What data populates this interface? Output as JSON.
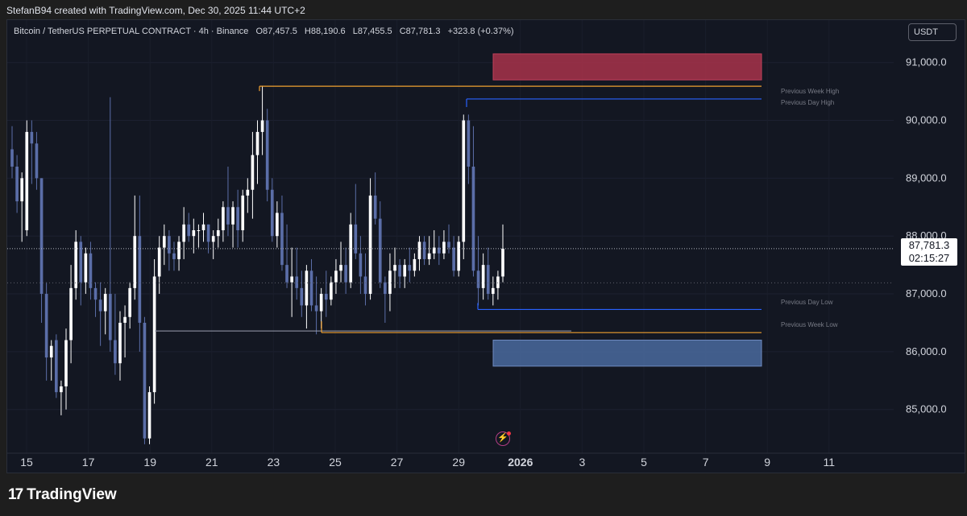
{
  "header": {
    "attribution": "StefanB94 created with TradingView.com, Dec 30, 2025 11:44 UTC+2"
  },
  "legend": {
    "symbol": "Bitcoin / TetherUS PERPETUAL CONTRACT · 4h · Binance",
    "open": "O87,457.5",
    "high": "H88,190.6",
    "low": "L87,455.5",
    "close": "C87,781.3",
    "change": "+323.8 (+0.37%)"
  },
  "currency": "USDT",
  "price_axis": {
    "labels": [
      "91,000.0",
      "90,000.0",
      "89,000.0",
      "88,000.0",
      "87,000.0",
      "86,000.0",
      "85,000.0"
    ],
    "current_price": "87,781.3",
    "countdown": "02:15:27"
  },
  "time_axis": {
    "labels": [
      "15",
      "17",
      "19",
      "21",
      "23",
      "25",
      "27",
      "29",
      "2026",
      "3",
      "5",
      "7",
      "9",
      "11"
    ]
  },
  "levels": {
    "prev_week_high": "Previous Week High",
    "prev_day_high": "Previous Day High",
    "prev_day_low": "Previous Day Low",
    "prev_week_low": "Previous Week Low"
  },
  "colors": {
    "background": "#131722",
    "bull_candle": "#ffffff",
    "bear_candle": "#5b6ea8",
    "week_level": "#f0a030",
    "day_level": "#2962ff",
    "supply_zone": "#a8324a",
    "demand_zone": "#4a6a9e"
  },
  "branding": {
    "logo_text": "TradingView"
  },
  "chart_data": {
    "type": "candlestick",
    "timeframe": "4h",
    "ylim": [
      84300,
      91650
    ],
    "current_price": 87781.3,
    "levels": {
      "previous_week_high": 90590,
      "previous_day_high": 90370,
      "previous_day_low": 86730,
      "previous_week_low": 86330
    },
    "zones": {
      "supply": [
        90700,
        91150
      ],
      "demand": [
        85750,
        86200
      ]
    },
    "candles": [
      [
        89500,
        89900,
        89000,
        89200
      ],
      [
        89200,
        89400,
        88400,
        88600
      ],
      [
        88600,
        89100,
        87900,
        89000
      ],
      [
        88100,
        90000,
        88000,
        89800
      ],
      [
        89800,
        90000,
        88900,
        89600
      ],
      [
        89600,
        89800,
        88800,
        89000
      ],
      [
        89000,
        89000,
        86500,
        87000
      ],
      [
        87000,
        87200,
        85500,
        85900
      ],
      [
        85900,
        86200,
        85500,
        86100
      ],
      [
        86200,
        86300,
        85200,
        85300
      ],
      [
        85300,
        85500,
        84900,
        85400
      ],
      [
        85400,
        86400,
        85000,
        86200
      ],
      [
        86200,
        87500,
        85800,
        87100
      ],
      [
        87100,
        88100,
        86900,
        87900
      ],
      [
        87900,
        88000,
        86800,
        87200
      ],
      [
        87200,
        87800,
        87000,
        87700
      ],
      [
        87700,
        87900,
        86900,
        87100
      ],
      [
        87100,
        87200,
        86600,
        86900
      ],
      [
        86900,
        87200,
        86100,
        86700
      ],
      [
        86700,
        87100,
        86300,
        87000
      ],
      [
        87000,
        90400,
        86000,
        86200
      ],
      [
        86200,
        87000,
        85600,
        85800
      ],
      [
        85800,
        86700,
        85500,
        86500
      ],
      [
        86500,
        86800,
        85900,
        86600
      ],
      [
        86600,
        87200,
        86400,
        87100
      ],
      [
        87100,
        88700,
        86900,
        88000
      ],
      [
        88000,
        88700,
        86000,
        86500
      ],
      [
        86500,
        86600,
        84400,
        84500
      ],
      [
        84500,
        85400,
        84400,
        85300
      ],
      [
        85300,
        87600,
        85100,
        87300
      ],
      [
        87300,
        88000,
        87000,
        87800
      ],
      [
        87800,
        88200,
        87500,
        88000
      ],
      [
        88000,
        88100,
        87400,
        87700
      ],
      [
        87700,
        87900,
        87400,
        87600
      ],
      [
        87600,
        88000,
        87400,
        87900
      ],
      [
        87900,
        88500,
        87600,
        88200
      ],
      [
        88200,
        88400,
        87900,
        88000
      ],
      [
        88000,
        88300,
        87700,
        88100
      ],
      [
        88100,
        88200,
        87800,
        88100
      ],
      [
        88100,
        88400,
        87900,
        88200
      ],
      [
        88200,
        88200,
        87700,
        87900
      ],
      [
        87900,
        88100,
        87600,
        88000
      ],
      [
        88000,
        88300,
        87800,
        88100
      ],
      [
        88100,
        88600,
        87900,
        88500
      ],
      [
        88500,
        89200,
        88000,
        88200
      ],
      [
        88200,
        88600,
        87800,
        88500
      ],
      [
        88500,
        88800,
        87800,
        88100
      ],
      [
        88100,
        88800,
        87900,
        88700
      ],
      [
        88700,
        89000,
        88400,
        88800
      ],
      [
        88800,
        89800,
        88300,
        89400
      ],
      [
        89400,
        90000,
        88900,
        89800
      ],
      [
        89800,
        90600,
        89400,
        90000
      ],
      [
        90000,
        90200,
        88600,
        88800
      ],
      [
        88800,
        89000,
        87900,
        88000
      ],
      [
        88000,
        88600,
        87800,
        88400
      ],
      [
        88400,
        88700,
        87400,
        87500
      ],
      [
        87500,
        88200,
        87100,
        87200
      ],
      [
        87200,
        87800,
        86600,
        87300
      ],
      [
        87300,
        87800,
        86900,
        87100
      ],
      [
        87100,
        87400,
        86600,
        86800
      ],
      [
        86800,
        87500,
        86400,
        87400
      ],
      [
        87400,
        87600,
        86700,
        86800
      ],
      [
        86800,
        87300,
        86300,
        86700
      ],
      [
        86700,
        87100,
        86400,
        87000
      ],
      [
        87000,
        87400,
        86600,
        86900
      ],
      [
        86900,
        87300,
        86800,
        87200
      ],
      [
        87200,
        87600,
        87000,
        87400
      ],
      [
        87400,
        87900,
        87200,
        87500
      ],
      [
        87500,
        87800,
        87000,
        87200
      ],
      [
        87200,
        88400,
        87100,
        88200
      ],
      [
        88200,
        88900,
        87600,
        87700
      ],
      [
        87700,
        88000,
        87000,
        87300
      ],
      [
        87300,
        87700,
        86800,
        87000
      ],
      [
        87000,
        89000,
        86900,
        88700
      ],
      [
        88700,
        89100,
        88200,
        88300
      ],
      [
        88300,
        88600,
        87100,
        87200
      ],
      [
        87200,
        87300,
        86500,
        87000
      ],
      [
        87000,
        87700,
        86700,
        87400
      ],
      [
        87400,
        87800,
        87100,
        87500
      ],
      [
        87500,
        87600,
        87100,
        87300
      ],
      [
        87300,
        87600,
        87100,
        87500
      ],
      [
        87500,
        87800,
        87200,
        87400
      ],
      [
        87400,
        87700,
        87300,
        87600
      ],
      [
        87600,
        88000,
        87400,
        87900
      ],
      [
        87900,
        88000,
        87500,
        87600
      ],
      [
        87600,
        88000,
        87500,
        87700
      ],
      [
        87700,
        88100,
        87600,
        87800
      ],
      [
        87800,
        88000,
        87500,
        87700
      ],
      [
        87700,
        88100,
        87600,
        87900
      ],
      [
        87900,
        88200,
        87700,
        87800
      ],
      [
        87800,
        88000,
        87300,
        87400
      ],
      [
        87400,
        88000,
        87300,
        87900
      ],
      [
        87900,
        90100,
        87600,
        90000
      ],
      [
        90000,
        90100,
        88900,
        89200
      ],
      [
        89200,
        89900,
        87300,
        87400
      ],
      [
        87400,
        88000,
        86800,
        87100
      ],
      [
        87100,
        87700,
        86900,
        87500
      ],
      [
        87500,
        87800,
        86900,
        87000
      ],
      [
        87000,
        87300,
        86800,
        87100
      ],
      [
        87100,
        87400,
        86900,
        87300
      ],
      [
        87300,
        88200,
        87200,
        87781
      ]
    ]
  }
}
